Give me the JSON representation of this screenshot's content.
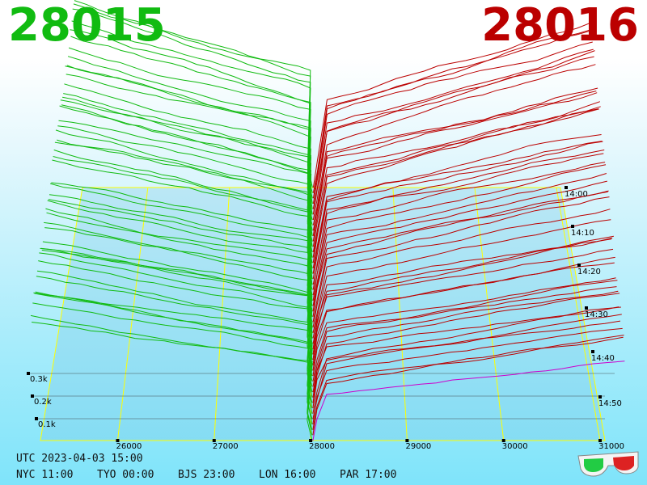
{
  "header": {
    "bid_price": "28015",
    "ask_price": "28016"
  },
  "clock": {
    "utc": "UTC 2023-04-03 15:00",
    "cities": [
      {
        "label": "NYC 11:00"
      },
      {
        "label": "TYO 00:00"
      },
      {
        "label": "BJS 23:00"
      },
      {
        "label": "LON 16:00"
      },
      {
        "label": "PAR 17:00"
      }
    ]
  },
  "chart_data": {
    "type": "area",
    "x": [
      26000,
      27000,
      28000,
      29000,
      30000,
      31000
    ],
    "x_tick_labels": [
      "26000",
      "27000",
      "28000",
      "29000",
      "30000",
      "31000"
    ],
    "z_tick_labels": [
      "0.1k",
      "0.2k",
      "0.3k"
    ],
    "time_tick_labels": [
      "14:00",
      "14:10",
      "14:20",
      "14:30",
      "14:40",
      "14:50"
    ],
    "colors": {
      "bid": "#11bb11",
      "ask": "#bb0000",
      "latest_ask": "#cc00cc",
      "grid": "#ffff00"
    }
  },
  "icon": "3d-glasses-icon"
}
